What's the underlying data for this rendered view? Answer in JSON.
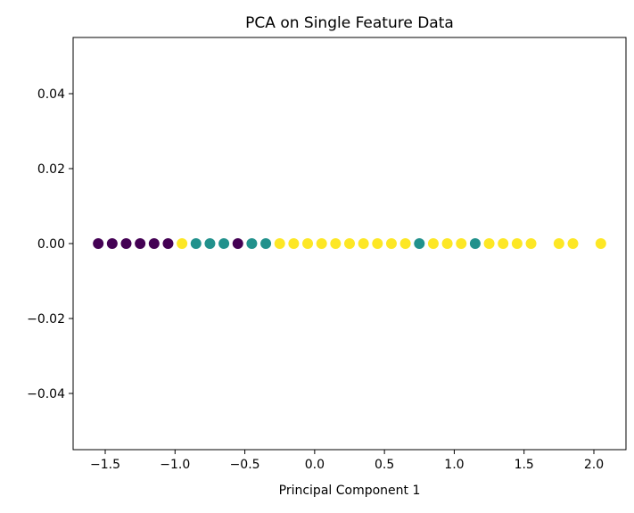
{
  "chart_data": {
    "type": "scatter",
    "title": "PCA on Single Feature Data",
    "xlabel": "Principal Component 1",
    "ylabel": "",
    "xlim": [
      -1.73,
      2.23
    ],
    "ylim": [
      -0.055,
      0.055
    ],
    "xticks": [
      -1.5,
      -1.0,
      -0.5,
      0.0,
      0.5,
      1.0,
      1.5,
      2.0
    ],
    "xtick_labels": [
      "−1.5",
      "−1.0",
      "−0.5",
      "0.0",
      "0.5",
      "1.0",
      "1.5",
      "2.0"
    ],
    "yticks": [
      -0.04,
      -0.02,
      0.0,
      0.02,
      0.04
    ],
    "ytick_labels": [
      "−0.04",
      "−0.02",
      "0.00",
      "0.02",
      "0.04"
    ],
    "grid": false,
    "legend": "none",
    "colors": {
      "class_0": "#440154",
      "class_1": "#21918c",
      "class_2": "#fde725"
    },
    "points": [
      {
        "x": -1.55,
        "y": 0.0,
        "class": 0
      },
      {
        "x": -1.45,
        "y": 0.0,
        "class": 0
      },
      {
        "x": -1.35,
        "y": 0.0,
        "class": 0
      },
      {
        "x": -1.25,
        "y": 0.0,
        "class": 0
      },
      {
        "x": -1.15,
        "y": 0.0,
        "class": 0
      },
      {
        "x": -1.05,
        "y": 0.0,
        "class": 0
      },
      {
        "x": -0.95,
        "y": 0.0,
        "class": 2
      },
      {
        "x": -0.85,
        "y": 0.0,
        "class": 1
      },
      {
        "x": -0.75,
        "y": 0.0,
        "class": 1
      },
      {
        "x": -0.65,
        "y": 0.0,
        "class": 1
      },
      {
        "x": -0.55,
        "y": 0.0,
        "class": 0
      },
      {
        "x": -0.45,
        "y": 0.0,
        "class": 1
      },
      {
        "x": -0.35,
        "y": 0.0,
        "class": 1
      },
      {
        "x": -0.25,
        "y": 0.0,
        "class": 2
      },
      {
        "x": -0.15,
        "y": 0.0,
        "class": 2
      },
      {
        "x": -0.05,
        "y": 0.0,
        "class": 2
      },
      {
        "x": 0.05,
        "y": 0.0,
        "class": 2
      },
      {
        "x": 0.15,
        "y": 0.0,
        "class": 2
      },
      {
        "x": 0.25,
        "y": 0.0,
        "class": 2
      },
      {
        "x": 0.35,
        "y": 0.0,
        "class": 2
      },
      {
        "x": 0.45,
        "y": 0.0,
        "class": 2
      },
      {
        "x": 0.55,
        "y": 0.0,
        "class": 2
      },
      {
        "x": 0.65,
        "y": 0.0,
        "class": 2
      },
      {
        "x": 0.75,
        "y": 0.0,
        "class": 1
      },
      {
        "x": 0.85,
        "y": 0.0,
        "class": 2
      },
      {
        "x": 0.95,
        "y": 0.0,
        "class": 2
      },
      {
        "x": 1.05,
        "y": 0.0,
        "class": 2
      },
      {
        "x": 1.15,
        "y": 0.0,
        "class": 1
      },
      {
        "x": 1.25,
        "y": 0.0,
        "class": 2
      },
      {
        "x": 1.35,
        "y": 0.0,
        "class": 2
      },
      {
        "x": 1.45,
        "y": 0.0,
        "class": 2
      },
      {
        "x": 1.55,
        "y": 0.0,
        "class": 2
      },
      {
        "x": 1.75,
        "y": 0.0,
        "class": 2
      },
      {
        "x": 1.85,
        "y": 0.0,
        "class": 2
      },
      {
        "x": 2.05,
        "y": 0.0,
        "class": 2
      }
    ]
  }
}
